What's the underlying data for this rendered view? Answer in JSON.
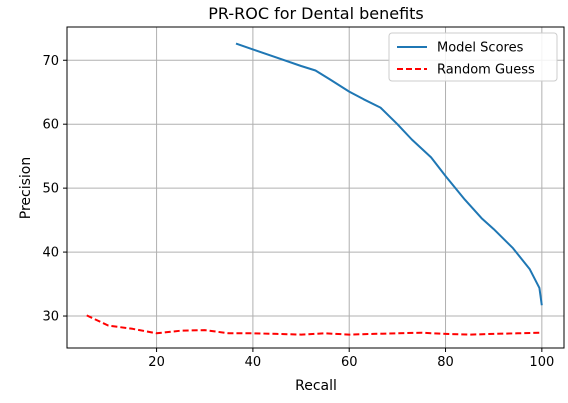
{
  "chart_data": {
    "type": "line",
    "title": "PR-ROC for Dental benefits",
    "xlabel": "Recall",
    "ylabel": "Precision",
    "xlim": [
      1.4,
      104.6
    ],
    "ylim": [
      25.0,
      75.2
    ],
    "xticks": [
      20,
      40,
      60,
      80,
      100
    ],
    "yticks": [
      30,
      40,
      50,
      60,
      70
    ],
    "grid": true,
    "legend_position": "top-right",
    "series": [
      {
        "name": "Model Scores",
        "color": "#1f77b4",
        "style": "solid",
        "x": [
          36.5,
          40,
          45,
          50,
          53,
          56,
          60,
          63,
          66.5,
          70,
          73,
          77,
          80,
          84,
          87.5,
          90,
          94,
          97.5,
          99.5,
          100
        ],
        "y": [
          72.6,
          71.7,
          70.4,
          69.1,
          68.4,
          67.0,
          65.1,
          63.9,
          62.6,
          60.0,
          57.6,
          54.8,
          51.9,
          48.2,
          45.3,
          43.6,
          40.6,
          37.3,
          34.4,
          31.7
        ]
      },
      {
        "name": "Random Guess",
        "color": "#ff0000",
        "style": "dashed",
        "x": [
          5.5,
          10,
          15,
          20,
          25,
          30,
          35,
          40,
          45,
          50,
          55,
          60,
          65,
          70,
          75,
          80,
          85,
          90,
          95,
          100
        ],
        "y": [
          30.1,
          28.5,
          28.0,
          27.3,
          27.7,
          27.8,
          27.3,
          27.3,
          27.2,
          27.1,
          27.3,
          27.1,
          27.2,
          27.3,
          27.4,
          27.2,
          27.1,
          27.2,
          27.3,
          27.4
        ]
      }
    ]
  }
}
